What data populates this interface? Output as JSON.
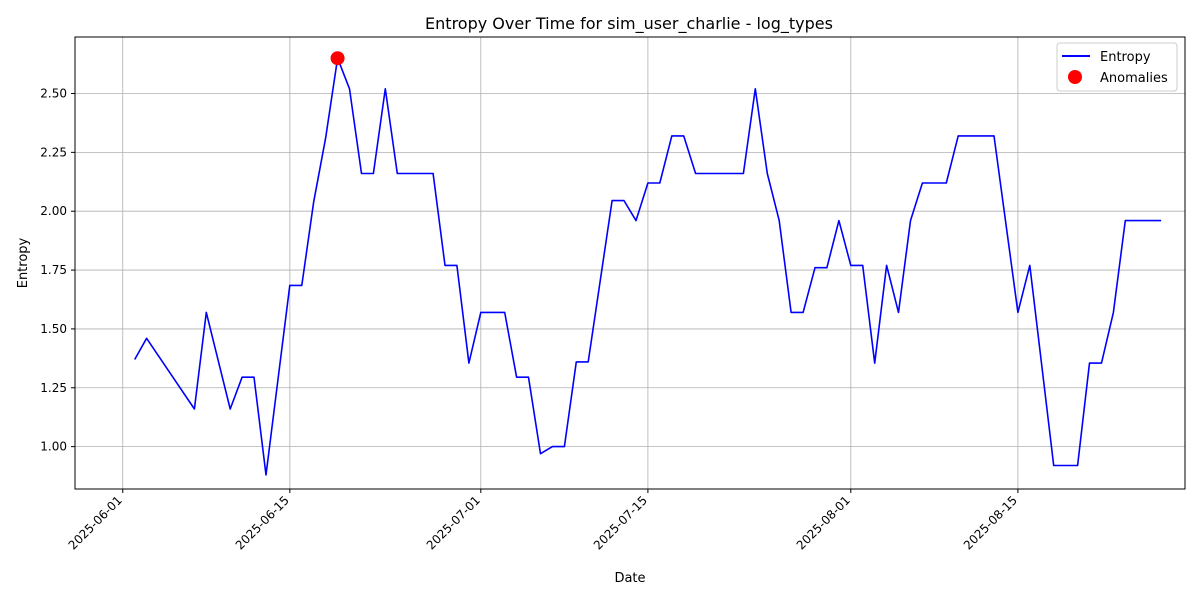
{
  "chart_data": {
    "type": "line",
    "title": "Entropy Over Time for sim_user_charlie - log_types",
    "xlabel": "Date",
    "ylabel": "Entropy",
    "xlim": [
      "2025-05-28",
      "2025-08-29"
    ],
    "ylim": [
      0.82,
      2.74
    ],
    "x_ticks": [
      "2025-06-01",
      "2025-06-15",
      "2025-07-01",
      "2025-07-15",
      "2025-08-01",
      "2025-08-15"
    ],
    "y_ticks": [
      "1.00",
      "1.25",
      "1.50",
      "1.75",
      "2.00",
      "2.25",
      "2.50"
    ],
    "grid": true,
    "legend_position": "top-right",
    "series": [
      {
        "name": "Entropy",
        "color": "#0000ff",
        "points": [
          [
            "2025-06-02",
            1.37
          ],
          [
            "2025-06-03",
            1.46
          ],
          [
            "2025-06-07",
            1.16
          ],
          [
            "2025-06-08",
            1.57
          ],
          [
            "2025-06-10",
            1.16
          ],
          [
            "2025-06-11",
            1.295
          ],
          [
            "2025-06-12",
            1.295
          ],
          [
            "2025-06-13",
            0.88
          ],
          [
            "2025-06-15",
            1.685
          ],
          [
            "2025-06-16",
            1.685
          ],
          [
            "2025-06-17",
            2.04
          ],
          [
            "2025-06-18",
            2.31
          ],
          [
            "2025-06-19",
            2.65
          ],
          [
            "2025-06-20",
            2.52
          ],
          [
            "2025-06-21",
            2.16
          ],
          [
            "2025-06-22",
            2.16
          ],
          [
            "2025-06-23",
            2.52
          ],
          [
            "2025-06-24",
            2.16
          ],
          [
            "2025-06-27",
            2.16
          ],
          [
            "2025-06-28",
            1.77
          ],
          [
            "2025-06-29",
            1.77
          ],
          [
            "2025-06-30",
            1.355
          ],
          [
            "2025-07-01",
            1.57
          ],
          [
            "2025-07-03",
            1.57
          ],
          [
            "2025-07-04",
            1.295
          ],
          [
            "2025-07-05",
            1.295
          ],
          [
            "2025-07-06",
            0.97
          ],
          [
            "2025-07-07",
            1.0
          ],
          [
            "2025-07-08",
            1.0
          ],
          [
            "2025-07-09",
            1.36
          ],
          [
            "2025-07-10",
            1.36
          ],
          [
            "2025-07-12",
            2.045
          ],
          [
            "2025-07-13",
            2.045
          ],
          [
            "2025-07-14",
            1.96
          ],
          [
            "2025-07-15",
            2.12
          ],
          [
            "2025-07-16",
            2.12
          ],
          [
            "2025-07-17",
            2.32
          ],
          [
            "2025-07-18",
            2.32
          ],
          [
            "2025-07-19",
            2.16
          ],
          [
            "2025-07-23",
            2.16
          ],
          [
            "2025-07-24",
            2.52
          ],
          [
            "2025-07-25",
            2.16
          ],
          [
            "2025-07-26",
            1.96
          ],
          [
            "2025-07-27",
            1.57
          ],
          [
            "2025-07-28",
            1.57
          ],
          [
            "2025-07-29",
            1.76
          ],
          [
            "2025-07-30",
            1.76
          ],
          [
            "2025-07-31",
            1.96
          ],
          [
            "2025-08-01",
            1.77
          ],
          [
            "2025-08-02",
            1.77
          ],
          [
            "2025-08-03",
            1.355
          ],
          [
            "2025-08-04",
            1.77
          ],
          [
            "2025-08-05",
            1.57
          ],
          [
            "2025-08-06",
            1.96
          ],
          [
            "2025-08-07",
            2.12
          ],
          [
            "2025-08-09",
            2.12
          ],
          [
            "2025-08-10",
            2.32
          ],
          [
            "2025-08-13",
            2.32
          ],
          [
            "2025-08-15",
            1.57
          ],
          [
            "2025-08-16",
            1.77
          ],
          [
            "2025-08-18",
            0.92
          ],
          [
            "2025-08-20",
            0.92
          ],
          [
            "2025-08-21",
            1.355
          ],
          [
            "2025-08-22",
            1.355
          ],
          [
            "2025-08-23",
            1.57
          ],
          [
            "2025-08-24",
            1.96
          ],
          [
            "2025-08-27",
            1.96
          ]
        ]
      }
    ],
    "anomalies": {
      "name": "Anomalies",
      "color": "#ff0000",
      "points": [
        [
          "2025-06-19",
          2.65
        ]
      ]
    }
  }
}
